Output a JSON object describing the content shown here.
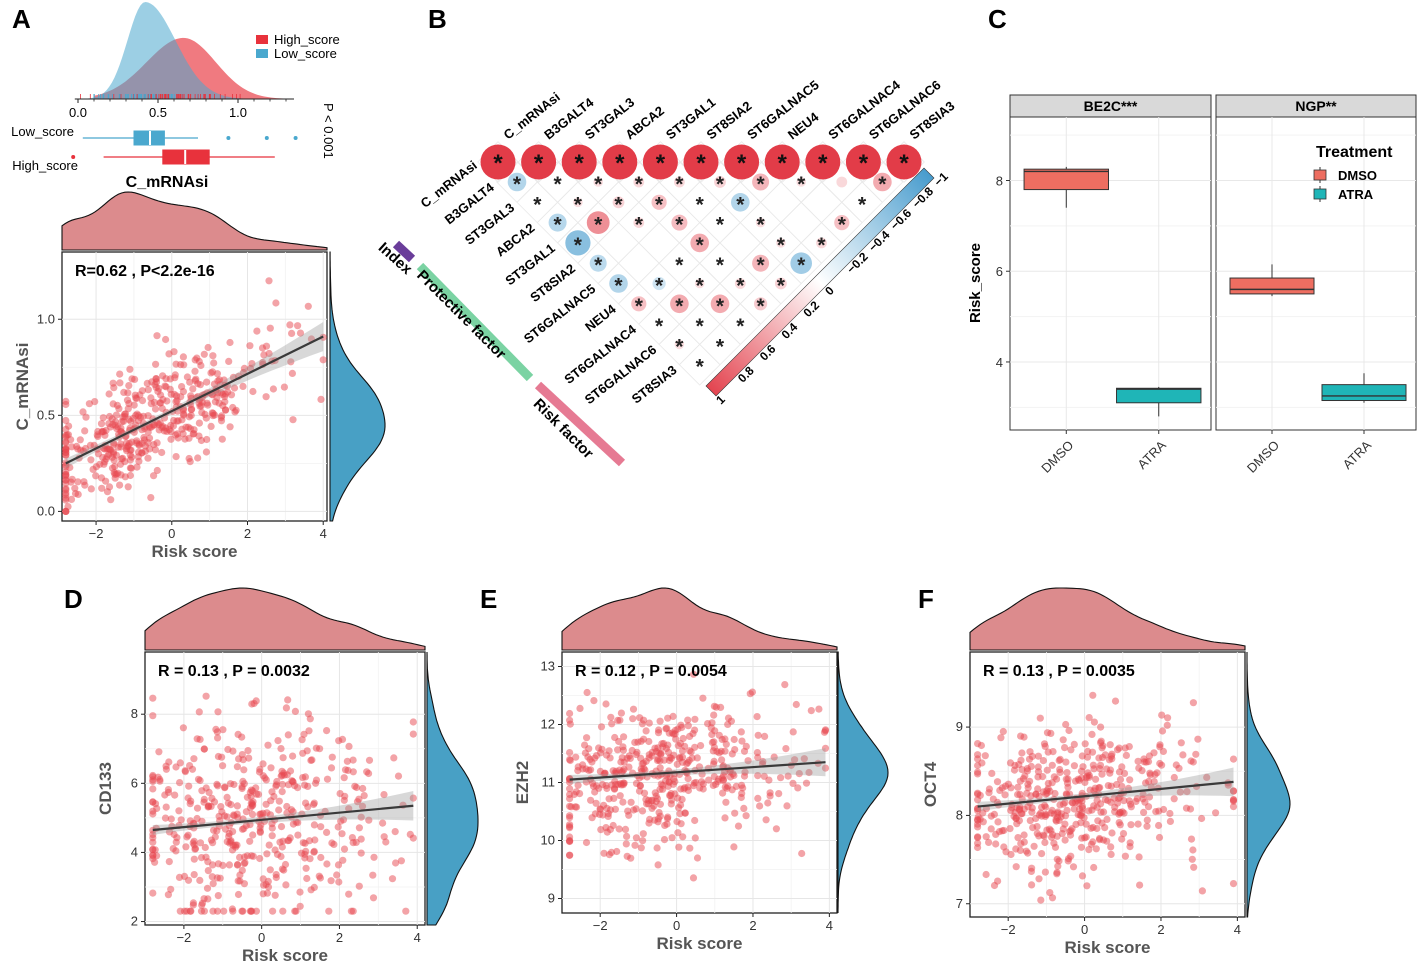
{
  "colors": {
    "high": "#E8323C",
    "low": "#4AA8CE",
    "point": "#E8474F",
    "marg_top": "#D26A6D",
    "marg_right": "#3E9BC2",
    "dmso": "#EE6E61",
    "atra": "#1FB5B7",
    "pos": "#E23C48",
    "neg": "#4C9ECF",
    "protective": "#7BD3A3",
    "index": "#6A3D9A",
    "risk": "#E67A93",
    "strip": "#D9D9D9"
  },
  "panel_a": {
    "label": "A",
    "legend": [
      "High_score",
      "Low_score"
    ],
    "group_labels": [
      "Low_score",
      "High_score"
    ],
    "pvalue": "P < 0.001",
    "xlabel_top": "C_mRNAsi",
    "density_axis_ticks": [
      "0.0",
      "0.5",
      "1.0"
    ]
  },
  "panel_b": {
    "label": "B",
    "row_labels": [
      "C_mRNAsi",
      "B3GALT4",
      "ST3GAL3",
      "ABCA2",
      "ST3GAL1",
      "ST8SIA2",
      "ST6GALNAC5",
      "NEU4",
      "ST6GALNAC4",
      "ST6GALNAC6",
      "ST8SIA3"
    ],
    "col_labels": [
      "C_mRNAsi",
      "B3GALT4",
      "ST3GAL3",
      "ABCA2",
      "ST3GAL1",
      "ST8SIA2",
      "ST6GALNAC5",
      "NEU4",
      "ST6GALNAC4",
      "ST6GALNAC6",
      "ST8SIA3"
    ],
    "group_labels": [
      "Index",
      "Protective factor",
      "Risk factor"
    ],
    "colorbar_ticks": [
      "1",
      "0.8",
      "0.6",
      "0.4",
      "0.2",
      "0",
      "−0.2",
      "−0.4",
      "−0.6",
      "−0.8",
      "−1"
    ],
    "star": "*"
  },
  "panel_c": {
    "label": "C",
    "facets": [
      "BE2C***",
      "NGP**"
    ],
    "ylabel": "Risk_score",
    "yticks": [
      "4",
      "6",
      "8"
    ],
    "xticks": [
      "DMSO",
      "ATRA"
    ],
    "legend_title": "Treatment",
    "legend_items": [
      "DMSO",
      "ATRA"
    ]
  },
  "chart_data": [
    {
      "type": "density",
      "panel": "A-top",
      "title": "C_mRNAsi distribution by group",
      "series": [
        {
          "name": "High_score",
          "mode": 0.66,
          "sd": 0.2,
          "range": [
            0.1,
            1.3
          ]
        },
        {
          "name": "Low_score",
          "mode": 0.42,
          "sd": 0.13,
          "range": [
            0.0,
            1.3
          ]
        }
      ],
      "xlim": [
        -0.05,
        1.45
      ],
      "boxplots": [
        {
          "name": "Low_score",
          "whisker": [
            0.03,
            0.75
          ],
          "q1": 0.35,
          "median": 0.45,
          "q3": 0.54,
          "outliers": [
            0.94,
            1.18,
            1.36
          ]
        },
        {
          "name": "High_score",
          "whisker": [
            0.16,
            1.23
          ],
          "q1": 0.53,
          "median": 0.67,
          "q3": 0.82,
          "outliers": [
            -0.03
          ]
        }
      ]
    },
    {
      "type": "scatter",
      "panel": "A",
      "annotation": "R=0.62 , P<2.2e-16",
      "xlabel": "Risk score",
      "ylabel": "C_mRNAsi",
      "xlim": [
        -2.9,
        4.1
      ],
      "ylim": [
        -0.05,
        1.35
      ],
      "xticks": [
        -2,
        0,
        2,
        4
      ],
      "yticks": [
        0.0,
        0.5,
        1.0
      ],
      "ytick_labels": [
        "0.0",
        "0.5",
        "1.0"
      ],
      "fit": {
        "x": [
          -2.8,
          4.0
        ],
        "y": [
          0.25,
          0.91
        ]
      },
      "points": {
        "n": 460,
        "seed": 11,
        "x_center": -0.8,
        "x_sd": 1.35,
        "x_range": [
          -2.8,
          4.0
        ],
        "intercept": 0.52,
        "slope": 0.097,
        "noise": 0.14,
        "y_range": [
          0.0,
          1.2
        ]
      }
    },
    {
      "type": "corrplot",
      "panel": "B",
      "variables": [
        "C_mRNAsi",
        "B3GALT4",
        "ST3GAL3",
        "ABCA2",
        "ST3GAL1",
        "ST8SIA2",
        "ST6GALNAC5",
        "NEU4",
        "ST6GALNAC4",
        "ST6GALNAC6",
        "ST8SIA3"
      ],
      "significance_label": "*",
      "colorbar": {
        "min": -1,
        "max": 1
      },
      "cells": [
        {
          "r": 0,
          "c": 0,
          "v": 1,
          "s": true
        },
        {
          "r": 0,
          "c": 1,
          "v": 1,
          "s": true
        },
        {
          "r": 0,
          "c": 2,
          "v": 1,
          "s": true
        },
        {
          "r": 0,
          "c": 3,
          "v": 1,
          "s": true
        },
        {
          "r": 0,
          "c": 4,
          "v": 1,
          "s": true
        },
        {
          "r": 0,
          "c": 5,
          "v": 1,
          "s": true
        },
        {
          "r": 0,
          "c": 6,
          "v": 1,
          "s": true
        },
        {
          "r": 0,
          "c": 7,
          "v": 1,
          "s": true
        },
        {
          "r": 0,
          "c": 8,
          "v": 1,
          "s": true
        },
        {
          "r": 0,
          "c": 9,
          "v": 1,
          "s": true
        },
        {
          "r": 0,
          "c": 10,
          "v": 1,
          "s": true
        },
        {
          "r": 1,
          "c": 0,
          "v": -0.3,
          "s": true
        },
        {
          "r": 1,
          "c": 1,
          "v": 0.05,
          "s": true
        },
        {
          "r": 1,
          "c": 2,
          "v": 0.08,
          "s": true
        },
        {
          "r": 1,
          "c": 3,
          "v": 0.1,
          "s": true
        },
        {
          "r": 1,
          "c": 4,
          "v": 0.1,
          "s": true
        },
        {
          "r": 1,
          "c": 5,
          "v": 0.12,
          "s": true
        },
        {
          "r": 1,
          "c": 6,
          "v": 0.25,
          "s": true
        },
        {
          "r": 1,
          "c": 7,
          "v": 0.08,
          "s": true
        },
        {
          "r": 1,
          "c": 8,
          "v": 0.1,
          "s": false
        },
        {
          "r": 1,
          "c": 9,
          "v": 0.3,
          "s": true
        },
        {
          "r": 2,
          "c": 0,
          "v": 0.05,
          "s": true
        },
        {
          "r": 2,
          "c": 1,
          "v": 0.08,
          "s": true
        },
        {
          "r": 2,
          "c": 2,
          "v": 0.12,
          "s": true
        },
        {
          "r": 2,
          "c": 3,
          "v": 0.2,
          "s": true
        },
        {
          "r": 2,
          "c": 4,
          "v": 0.05,
          "s": true
        },
        {
          "r": 2,
          "c": 5,
          "v": -0.3,
          "s": true
        },
        {
          "r": 2,
          "c": 6,
          "v": 0.05,
          "s": false
        },
        {
          "r": 2,
          "c": 7,
          "v": 0.05,
          "s": false
        },
        {
          "r": 2,
          "c": 8,
          "v": 0.05,
          "s": true
        },
        {
          "r": 3,
          "c": 0,
          "v": -0.28,
          "s": true
        },
        {
          "r": 3,
          "c": 1,
          "v": 0.45,
          "s": true
        },
        {
          "r": 3,
          "c": 2,
          "v": 0.1,
          "s": true
        },
        {
          "r": 3,
          "c": 3,
          "v": 0.22,
          "s": true
        },
        {
          "r": 3,
          "c": 4,
          "v": 0.05,
          "s": true
        },
        {
          "r": 3,
          "c": 5,
          "v": 0.08,
          "s": true
        },
        {
          "r": 3,
          "c": 6,
          "v": 0.05,
          "s": false
        },
        {
          "r": 3,
          "c": 7,
          "v": 0.2,
          "s": true
        },
        {
          "r": 4,
          "c": 0,
          "v": -0.55,
          "s": true
        },
        {
          "r": 4,
          "c": 1,
          "v": 0.03,
          "s": false
        },
        {
          "r": 4,
          "c": 2,
          "v": 0.03,
          "s": false
        },
        {
          "r": 4,
          "c": 3,
          "v": 0.3,
          "s": true
        },
        {
          "r": 4,
          "c": 4,
          "v": 0.05,
          "s": false
        },
        {
          "r": 4,
          "c": 5,
          "v": 0.08,
          "s": true
        },
        {
          "r": 4,
          "c": 6,
          "v": 0.1,
          "s": true
        },
        {
          "r": 5,
          "c": 0,
          "v": -0.25,
          "s": true
        },
        {
          "r": 5,
          "c": 1,
          "v": 0.05,
          "s": false
        },
        {
          "r": 5,
          "c": 2,
          "v": 0.05,
          "s": true
        },
        {
          "r": 5,
          "c": 3,
          "v": 0.05,
          "s": true
        },
        {
          "r": 5,
          "c": 4,
          "v": 0.25,
          "s": true
        },
        {
          "r": 5,
          "c": 5,
          "v": -0.4,
          "s": true
        },
        {
          "r": 6,
          "c": 0,
          "v": -0.3,
          "s": true
        },
        {
          "r": 6,
          "c": 1,
          "v": -0.15,
          "s": true
        },
        {
          "r": 6,
          "c": 2,
          "v": 0.08,
          "s": true
        },
        {
          "r": 6,
          "c": 3,
          "v": 0.1,
          "s": true
        },
        {
          "r": 6,
          "c": 4,
          "v": 0.12,
          "s": true
        },
        {
          "r": 7,
          "c": 0,
          "v": 0.2,
          "s": true
        },
        {
          "r": 7,
          "c": 1,
          "v": 0.3,
          "s": true
        },
        {
          "r": 7,
          "c": 2,
          "v": 0.3,
          "s": true
        },
        {
          "r": 7,
          "c": 3,
          "v": 0.15,
          "s": true
        },
        {
          "r": 8,
          "c": 0,
          "v": 0.05,
          "s": true
        },
        {
          "r": 8,
          "c": 1,
          "v": 0.05,
          "s": true
        },
        {
          "r": 8,
          "c": 2,
          "v": 0.05,
          "s": true
        },
        {
          "r": 9,
          "c": 0,
          "v": 0.08,
          "s": true
        },
        {
          "r": 9,
          "c": 1,
          "v": 0.05,
          "s": true
        },
        {
          "r": 10,
          "c": 0,
          "v": 0.05,
          "s": true
        }
      ]
    },
    {
      "type": "box",
      "panel": "C",
      "ylabel": "Risk_score",
      "ylim": [
        2.5,
        9.4
      ],
      "facets": [
        {
          "name": "BE2C***",
          "groups": [
            {
              "name": "DMSO",
              "whisker": [
                7.4,
                8.3
              ],
              "q1": 7.8,
              "median": 8.2,
              "q3": 8.25
            },
            {
              "name": "ATRA",
              "whisker": [
                2.8,
                3.45
              ],
              "q1": 3.1,
              "median": 3.4,
              "q3": 3.42
            }
          ]
        },
        {
          "name": "NGP**",
          "groups": [
            {
              "name": "DMSO",
              "whisker": [
                5.45,
                6.15
              ],
              "q1": 5.5,
              "median": 5.6,
              "q3": 5.85
            },
            {
              "name": "ATRA",
              "whisker": [
                3.1,
                3.75
              ],
              "q1": 3.15,
              "median": 3.25,
              "q3": 3.5
            }
          ]
        }
      ]
    },
    {
      "type": "scatter",
      "panel": "D",
      "annotation": "R = 0.13 , P = 0.0032",
      "xlabel": "Risk score",
      "ylabel": "CD133",
      "xlim": [
        -3.0,
        4.2
      ],
      "ylim": [
        1.9,
        9.8
      ],
      "xticks": [
        -2,
        0,
        2,
        4
      ],
      "yticks": [
        2,
        4,
        6,
        8
      ],
      "ytick_labels": [
        "2",
        "4",
        "6",
        "8"
      ],
      "fit": {
        "x": [
          -2.8,
          3.9
        ],
        "y": [
          4.65,
          5.35
        ]
      },
      "points": {
        "n": 470,
        "seed": 23,
        "x_center": -0.7,
        "x_sd": 1.35,
        "x_range": [
          -2.8,
          3.9
        ],
        "intercept": 4.9,
        "slope": 0.1,
        "noise": 1.45,
        "y_range": [
          2.3,
          9.5
        ]
      }
    },
    {
      "type": "scatter",
      "panel": "E",
      "annotation": "R = 0.12 , P = 0.0054",
      "xlabel": "Risk score",
      "ylabel": "EZH2",
      "xlim": [
        -3.0,
        4.2
      ],
      "ylim": [
        8.75,
        13.25
      ],
      "xticks": [
        -2,
        0,
        2,
        4
      ],
      "yticks": [
        9,
        10,
        11,
        12,
        13
      ],
      "ytick_labels": [
        "9",
        "10",
        "11",
        "12",
        "13"
      ],
      "fit": {
        "x": [
          -2.8,
          3.9
        ],
        "y": [
          11.05,
          11.35
        ]
      },
      "points": {
        "n": 470,
        "seed": 37,
        "x_center": -0.7,
        "x_sd": 1.35,
        "x_range": [
          -2.8,
          3.9
        ],
        "intercept": 11.15,
        "slope": 0.045,
        "noise": 0.62,
        "y_range": [
          8.9,
          13.1
        ]
      }
    },
    {
      "type": "scatter",
      "panel": "F",
      "annotation": "R = 0.13 , P = 0.0035",
      "xlabel": "Risk score",
      "ylabel": "OCT4",
      "xlim": [
        -3.0,
        4.2
      ],
      "ylim": [
        6.85,
        9.85
      ],
      "xticks": [
        -2,
        0,
        2,
        4
      ],
      "yticks": [
        7,
        8,
        9
      ],
      "ytick_labels": [
        "7",
        "8",
        "9"
      ],
      "fit": {
        "x": [
          -2.8,
          3.9
        ],
        "y": [
          8.1,
          8.38
        ]
      },
      "points": {
        "n": 470,
        "seed": 53,
        "x_center": -0.7,
        "x_sd": 1.35,
        "x_range": [
          -2.8,
          3.9
        ],
        "intercept": 8.2,
        "slope": 0.045,
        "noise": 0.42,
        "y_range": [
          6.9,
          9.7
        ]
      }
    }
  ]
}
